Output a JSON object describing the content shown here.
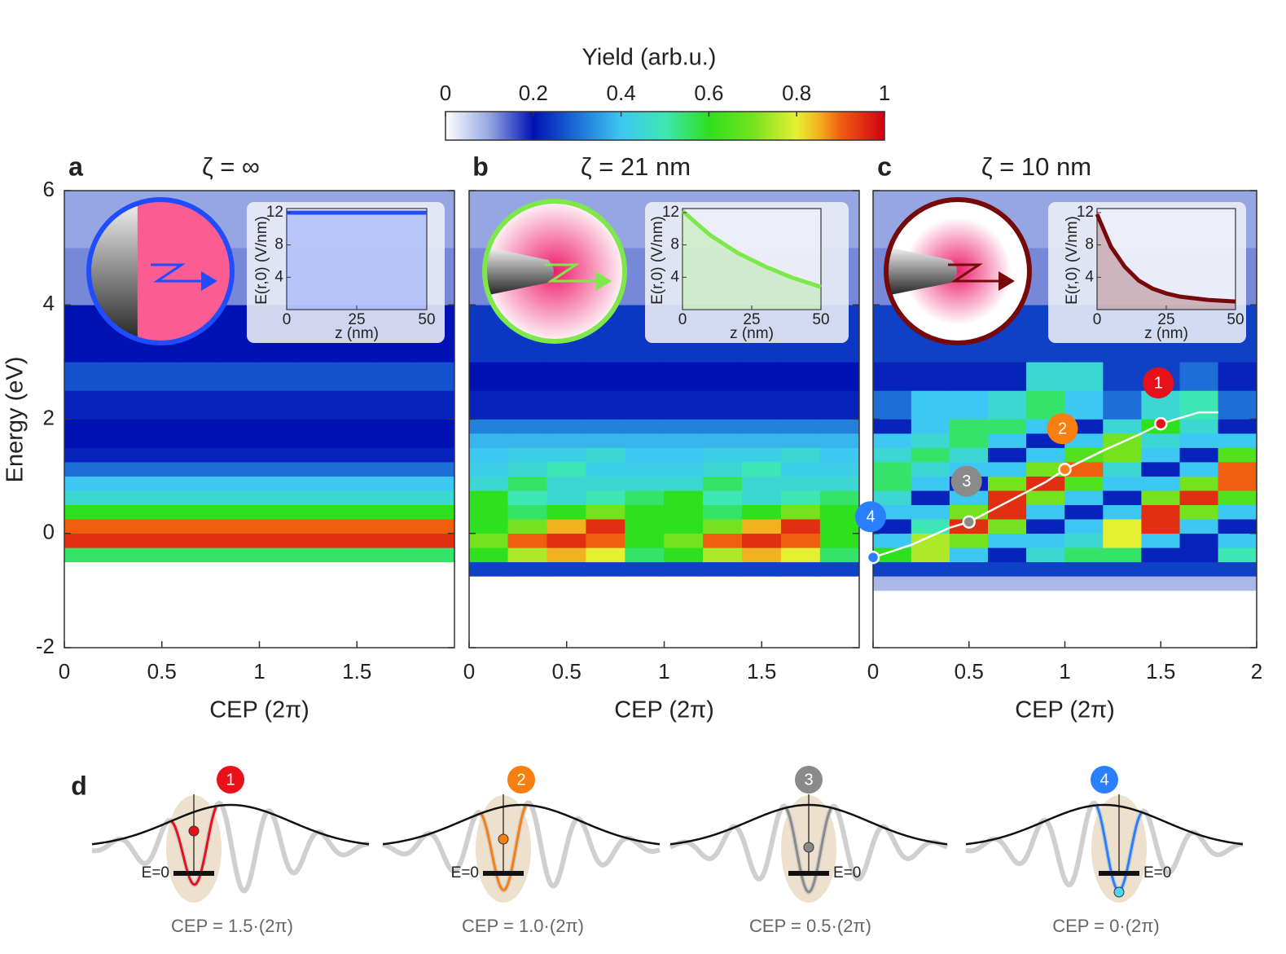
{
  "colorbar": {
    "title": "Yield (arb.u.)",
    "clim": [
      0,
      1
    ],
    "ticks": [
      0,
      0.2,
      0.4,
      0.6,
      0.8,
      1
    ],
    "colormap": [
      {
        "value": 0,
        "color": "#ffffff"
      },
      {
        "value": 0.1,
        "color": "#95a6e2"
      },
      {
        "value": 0.2,
        "color": "#0012b4"
      },
      {
        "value": 0.3,
        "color": "#1e6ed8"
      },
      {
        "value": 0.4,
        "color": "#3cc8f2"
      },
      {
        "value": 0.5,
        "color": "#3ee6b4"
      },
      {
        "value": 0.6,
        "color": "#2ee01e"
      },
      {
        "value": 0.7,
        "color": "#74e21e"
      },
      {
        "value": 0.8,
        "color": "#e6f032"
      },
      {
        "value": 0.85,
        "color": "#f2b220"
      },
      {
        "value": 0.9,
        "color": "#f05e10"
      },
      {
        "value": 1,
        "color": "#d00012"
      }
    ]
  },
  "chart_data": [
    {
      "type": "heatmap",
      "letter": "a",
      "title": "ζ = ∞",
      "xlabel": "CEP (2π)",
      "ylabel": "Energy (eV)",
      "show_ytick_labels": true,
      "xlim": [
        0,
        2
      ],
      "ylim": [
        -2,
        6
      ],
      "xticks": [
        0,
        0.5,
        1,
        1.5
      ],
      "yticks": [
        -2,
        0,
        2,
        4,
        6
      ],
      "color": "#1f4cff",
      "xbins": [
        0,
        0.2,
        0.4,
        0.6,
        0.8,
        1,
        1.2,
        1.4,
        1.6,
        1.8,
        2
      ],
      "ybins": [
        -1,
        -0.75,
        -0.5,
        -0.25,
        0,
        0.25,
        0.5,
        0.75,
        1,
        1.25,
        1.5,
        1.75,
        2,
        2.5,
        3,
        4,
        5,
        6
      ],
      "z": [
        [
          0,
          0,
          0,
          0,
          0,
          0,
          0,
          0,
          0,
          0
        ],
        [
          0,
          0,
          0,
          0,
          0,
          0,
          0,
          0,
          0,
          0
        ],
        [
          0.55,
          0.55,
          0.55,
          0.55,
          0.55,
          0.55,
          0.55,
          0.55,
          0.55,
          0.55
        ],
        [
          0.95,
          0.95,
          0.95,
          0.95,
          0.95,
          0.95,
          0.95,
          0.95,
          0.95,
          0.95
        ],
        [
          0.9,
          0.9,
          0.9,
          0.9,
          0.9,
          0.9,
          0.9,
          0.9,
          0.9,
          0.9
        ],
        [
          0.6,
          0.6,
          0.6,
          0.6,
          0.6,
          0.6,
          0.6,
          0.6,
          0.6,
          0.6
        ],
        [
          0.45,
          0.45,
          0.45,
          0.45,
          0.45,
          0.45,
          0.45,
          0.45,
          0.45,
          0.45
        ],
        [
          0.4,
          0.4,
          0.4,
          0.4,
          0.4,
          0.4,
          0.4,
          0.4,
          0.4,
          0.4
        ],
        [
          0.3,
          0.3,
          0.3,
          0.3,
          0.3,
          0.3,
          0.3,
          0.3,
          0.3,
          0.3
        ],
        [
          0.22,
          0.22,
          0.22,
          0.22,
          0.22,
          0.22,
          0.22,
          0.22,
          0.22,
          0.22
        ],
        [
          0.2,
          0.2,
          0.2,
          0.2,
          0.2,
          0.2,
          0.2,
          0.2,
          0.2,
          0.2
        ],
        [
          0.2,
          0.2,
          0.2,
          0.2,
          0.2,
          0.2,
          0.2,
          0.2,
          0.2,
          0.2
        ],
        [
          0.22,
          0.22,
          0.22,
          0.22,
          0.22,
          0.22,
          0.22,
          0.22,
          0.22,
          0.22
        ],
        [
          0.27,
          0.27,
          0.27,
          0.27,
          0.27,
          0.27,
          0.27,
          0.27,
          0.27,
          0.27
        ],
        [
          0.2,
          0.2,
          0.2,
          0.2,
          0.2,
          0.2,
          0.2,
          0.2,
          0.2,
          0.2
        ],
        [
          0.12,
          0.12,
          0.12,
          0.12,
          0.12,
          0.12,
          0.12,
          0.12,
          0.12,
          0.12
        ],
        [
          0.1,
          0.1,
          0.1,
          0.1,
          0.1,
          0.1,
          0.1,
          0.1,
          0.1,
          0.1
        ]
      ],
      "inset": {
        "type": "line",
        "xlabel": "z (nm)",
        "ylabel": "E(r,0) (V/nm)",
        "xlim": [
          0,
          50
        ],
        "ylim": [
          0,
          12.5
        ],
        "xticks": [
          0,
          25,
          50
        ],
        "yticks": [
          4,
          8,
          12
        ],
        "x": [
          0,
          50
        ],
        "values": [
          12,
          12
        ]
      }
    },
    {
      "type": "heatmap",
      "letter": "b",
      "title": "ζ = 21 nm",
      "xlabel": "CEP (2π)",
      "show_ytick_labels": false,
      "xlim": [
        0,
        2
      ],
      "ylim": [
        -2,
        6
      ],
      "xticks": [
        0,
        0.5,
        1,
        1.5
      ],
      "yticks": [
        -2,
        0,
        2,
        4,
        6
      ],
      "color": "#7ee84a",
      "xbins": [
        0,
        0.2,
        0.4,
        0.6,
        0.8,
        1,
        1.2,
        1.4,
        1.6,
        1.8,
        2
      ],
      "ybins": [
        -1,
        -0.75,
        -0.5,
        -0.25,
        0,
        0.25,
        0.5,
        0.75,
        1,
        1.25,
        1.5,
        1.75,
        2,
        2.5,
        3,
        4,
        5,
        6
      ],
      "z": [
        [
          0,
          0,
          0,
          0,
          0,
          0,
          0,
          0,
          0,
          0
        ],
        [
          0.25,
          0.25,
          0.25,
          0.25,
          0.25,
          0.25,
          0.25,
          0.25,
          0.25,
          0.25
        ],
        [
          0.6,
          0.75,
          0.85,
          0.8,
          0.55,
          0.6,
          0.75,
          0.85,
          0.8,
          0.55
        ],
        [
          0.7,
          0.9,
          0.95,
          0.9,
          0.6,
          0.7,
          0.9,
          0.95,
          0.9,
          0.6
        ],
        [
          0.6,
          0.7,
          0.85,
          0.95,
          0.6,
          0.6,
          0.7,
          0.85,
          0.95,
          0.6
        ],
        [
          0.6,
          0.55,
          0.6,
          0.7,
          0.6,
          0.6,
          0.55,
          0.6,
          0.7,
          0.6
        ],
        [
          0.6,
          0.5,
          0.45,
          0.5,
          0.55,
          0.6,
          0.5,
          0.45,
          0.5,
          0.55
        ],
        [
          0.45,
          0.55,
          0.45,
          0.45,
          0.45,
          0.45,
          0.55,
          0.45,
          0.45,
          0.45
        ],
        [
          0.42,
          0.45,
          0.5,
          0.42,
          0.42,
          0.42,
          0.45,
          0.5,
          0.42,
          0.42
        ],
        [
          0.4,
          0.42,
          0.42,
          0.45,
          0.4,
          0.4,
          0.42,
          0.42,
          0.45,
          0.4
        ],
        [
          0.38,
          0.38,
          0.38,
          0.38,
          0.38,
          0.38,
          0.38,
          0.38,
          0.38,
          0.38
        ],
        [
          0.32,
          0.32,
          0.32,
          0.32,
          0.32,
          0.32,
          0.32,
          0.32,
          0.32,
          0.32
        ],
        [
          0.22,
          0.22,
          0.22,
          0.22,
          0.22,
          0.22,
          0.22,
          0.22,
          0.22,
          0.22
        ],
        [
          0.2,
          0.2,
          0.2,
          0.2,
          0.2,
          0.2,
          0.2,
          0.2,
          0.2,
          0.2
        ],
        [
          0.24,
          0.24,
          0.24,
          0.24,
          0.24,
          0.24,
          0.24,
          0.24,
          0.24,
          0.24
        ],
        [
          0.12,
          0.12,
          0.12,
          0.12,
          0.12,
          0.12,
          0.12,
          0.12,
          0.12,
          0.12
        ],
        [
          0.1,
          0.1,
          0.1,
          0.1,
          0.1,
          0.1,
          0.1,
          0.1,
          0.1,
          0.1
        ]
      ],
      "inset": {
        "type": "line",
        "xlabel": "z (nm)",
        "ylabel": "E(r,0) (V/nm)",
        "xlim": [
          0,
          50
        ],
        "ylim": [
          0,
          12.5
        ],
        "xticks": [
          0,
          25,
          50
        ],
        "yticks": [
          4,
          8,
          12
        ],
        "x": [
          0,
          10,
          20,
          30,
          40,
          50
        ],
        "values": [
          12.2,
          9.2,
          7,
          5.3,
          3.9,
          2.8
        ]
      }
    },
    {
      "type": "heatmap",
      "letter": "c",
      "title": "ζ = 10 nm",
      "xlabel": "CEP (2π)",
      "show_ytick_labels": false,
      "xlim": [
        0,
        2
      ],
      "ylim": [
        -2,
        6
      ],
      "xticks": [
        0,
        0.5,
        1,
        1.5,
        2
      ],
      "yticks": [
        -2,
        0,
        2,
        4,
        6
      ],
      "color": "#760a0a",
      "xbins": [
        0,
        0.2,
        0.4,
        0.6,
        0.8,
        1,
        1.2,
        1.4,
        1.6,
        1.8,
        2
      ],
      "ybins": [
        -1,
        -0.75,
        -0.5,
        -0.25,
        0,
        0.25,
        0.5,
        0.75,
        1,
        1.25,
        1.5,
        1.75,
        2,
        2.5,
        3,
        4,
        5,
        6
      ],
      "z": [
        [
          0.08,
          0.08,
          0.08,
          0.08,
          0.08,
          0.08,
          0.08,
          0.08,
          0.08,
          0.08
        ],
        [
          0.25,
          0.25,
          0.25,
          0.25,
          0.25,
          0.25,
          0.25,
          0.25,
          0.25,
          0.25
        ],
        [
          0.6,
          0.75,
          0.4,
          0.22,
          0.45,
          0.55,
          0.55,
          0.22,
          0.22,
          0.5
        ],
        [
          0.4,
          0.75,
          0.7,
          0.4,
          0.4,
          0.45,
          0.8,
          0.4,
          0.22,
          0.4
        ],
        [
          0.22,
          0.5,
          0.95,
          0.7,
          0.22,
          0.4,
          0.8,
          0.95,
          0.4,
          0.22
        ],
        [
          0.4,
          0.4,
          0.7,
          0.95,
          0.4,
          0.22,
          0.4,
          0.95,
          0.7,
          0.4
        ],
        [
          0.45,
          0.22,
          0.4,
          0.95,
          0.7,
          0.4,
          0.22,
          0.7,
          0.95,
          0.65
        ],
        [
          0.55,
          0.4,
          0.22,
          0.7,
          0.95,
          0.65,
          0.4,
          0.4,
          0.7,
          0.9
        ],
        [
          0.55,
          0.45,
          0.4,
          0.4,
          0.7,
          0.9,
          0.45,
          0.22,
          0.4,
          0.9
        ],
        [
          0.45,
          0.55,
          0.45,
          0.22,
          0.4,
          0.65,
          0.7,
          0.4,
          0.22,
          0.65
        ],
        [
          0.4,
          0.45,
          0.55,
          0.4,
          0.22,
          0.4,
          0.7,
          0.45,
          0.4,
          0.4
        ],
        [
          0.22,
          0.4,
          0.55,
          0.55,
          0.4,
          0.22,
          0.45,
          0.6,
          0.45,
          0.22
        ],
        [
          0.3,
          0.4,
          0.4,
          0.45,
          0.55,
          0.4,
          0.3,
          0.45,
          0.5,
          0.3
        ],
        [
          0.22,
          0.22,
          0.22,
          0.22,
          0.45,
          0.45,
          0.25,
          0.25,
          0.3,
          0.22
        ],
        [
          0.25,
          0.25,
          0.25,
          0.25,
          0.25,
          0.25,
          0.25,
          0.25,
          0.25,
          0.25
        ],
        [
          0.12,
          0.12,
          0.12,
          0.12,
          0.12,
          0.12,
          0.12,
          0.12,
          0.12,
          0.12
        ],
        [
          0.1,
          0.1,
          0.1,
          0.1,
          0.1,
          0.1,
          0.1,
          0.1,
          0.1,
          0.1
        ]
      ],
      "trajectory": {
        "color": "#ffffff",
        "x": [
          0,
          0.2,
          0.4,
          0.5,
          0.7,
          0.9,
          1,
          1.2,
          1.4,
          1.5,
          1.7,
          1.8
        ],
        "values": [
          -0.42,
          -0.2,
          0.1,
          0.2,
          0.55,
          0.9,
          1.12,
          1.45,
          1.75,
          1.92,
          2.12,
          2.12
        ]
      },
      "markers": [
        {
          "label": 1,
          "x": 1.5,
          "y": 1.92,
          "color": "#e8111a"
        },
        {
          "label": 2,
          "x": 1,
          "y": 1.12,
          "color": "#f77f10"
        },
        {
          "label": 3,
          "x": 0.5,
          "y": 0.2,
          "color": "#8a8a8a"
        },
        {
          "label": 4,
          "x": 0,
          "y": -0.42,
          "color": "#2a7fff"
        }
      ],
      "inset": {
        "type": "line",
        "xlabel": "z (nm)",
        "ylabel": "E(r,0) (V/nm)",
        "xlim": [
          0,
          50
        ],
        "ylim": [
          0,
          12.5
        ],
        "xticks": [
          0,
          25,
          50
        ],
        "yticks": [
          4,
          8,
          12
        ],
        "x": [
          0,
          5,
          10,
          15,
          20,
          25,
          30,
          40,
          50
        ],
        "values": [
          11.8,
          7.8,
          5.3,
          3.6,
          2.6,
          2,
          1.6,
          1.2,
          1
        ]
      }
    }
  ],
  "panel_d": {
    "letter": "d",
    "items": [
      {
        "number": 1,
        "color": "#e8111a",
        "level_label": "E=0",
        "caption": "CEP = 1.5·(2π)"
      },
      {
        "number": 2,
        "color": "#f77f10",
        "level_label": "E=0",
        "caption": "CEP = 1.0·(2π)"
      },
      {
        "number": 3,
        "color": "#8a8a8a",
        "level_label": "E=0",
        "caption": "CEP = 0.5·(2π)"
      },
      {
        "number": 4,
        "color": "#2a7fff",
        "level_label": "E=0",
        "caption": "CEP = 0·(2π)"
      }
    ]
  }
}
